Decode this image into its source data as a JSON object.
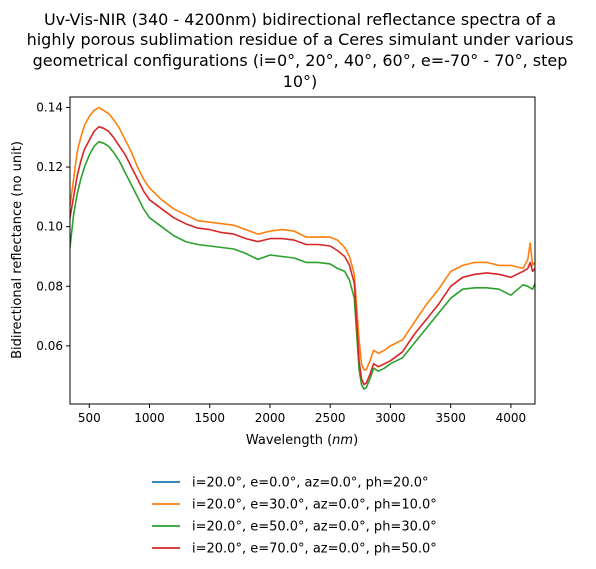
{
  "chart_data": {
    "type": "line",
    "title_lines": [
      "Uv-Vis-NIR (340 - 4200nm) bidirectional reflectance spectra of a",
      "highly porous sublimation residue of a Ceres simulant under various",
      "geometrical configurations (i=0°, 20°, 40°, 60°, e=-70° - 70°, step",
      "10°)"
    ],
    "xlabel_prefix": "Wavelength (",
    "xlabel_unit": "nm",
    "xlabel_suffix": ")",
    "ylabel": "Bidirectional reflectance (no unit)",
    "xlim": [
      340,
      4200
    ],
    "ylim": [
      0.0405,
      0.1435
    ],
    "xticks": [
      500,
      1000,
      1500,
      2000,
      2500,
      3000,
      3500,
      4000
    ],
    "yticks": [
      0.06,
      0.08,
      0.1,
      0.12,
      0.14
    ],
    "ytick_labels": [
      "0.06",
      "0.08",
      "0.10",
      "0.12",
      "0.14"
    ],
    "legend_placement": "bottom-center",
    "series": [
      {
        "name": "i=20.0°, e=0.0°, az=0.0°, ph=20.0°",
        "color": "#1f77b4",
        "x": [],
        "y": []
      },
      {
        "name": "i=20.0°, e=30.0°, az=0.0°, ph=10.0°",
        "color": "#ff7f0e",
        "x": [
          340,
          370,
          400,
          430,
          460,
          500,
          540,
          580,
          620,
          660,
          700,
          750,
          800,
          850,
          900,
          950,
          1000,
          1100,
          1200,
          1300,
          1400,
          1500,
          1600,
          1700,
          1800,
          1900,
          2000,
          2100,
          2200,
          2300,
          2400,
          2500,
          2560,
          2620,
          2660,
          2700,
          2740,
          2760,
          2780,
          2800,
          2830,
          2860,
          2900,
          2950,
          3000,
          3100,
          3200,
          3300,
          3400,
          3500,
          3600,
          3700,
          3800,
          3900,
          4000,
          4100,
          4140,
          4160,
          4180,
          4200
        ],
        "y": [
          0.107,
          0.116,
          0.125,
          0.13,
          0.134,
          0.137,
          0.139,
          0.14,
          0.139,
          0.138,
          0.136,
          0.133,
          0.129,
          0.125,
          0.12,
          0.116,
          0.113,
          0.109,
          0.106,
          0.104,
          0.102,
          0.1015,
          0.101,
          0.1005,
          0.099,
          0.0975,
          0.0985,
          0.099,
          0.0985,
          0.0965,
          0.0965,
          0.0965,
          0.0955,
          0.093,
          0.09,
          0.084,
          0.062,
          0.054,
          0.052,
          0.052,
          0.055,
          0.0585,
          0.0575,
          0.0585,
          0.06,
          0.062,
          0.068,
          0.074,
          0.079,
          0.085,
          0.087,
          0.088,
          0.088,
          0.087,
          0.087,
          0.086,
          0.089,
          0.0945,
          0.087,
          0.088
        ]
      },
      {
        "name": "i=20.0°, e=50.0°, az=0.0°, ph=30.0°",
        "color": "#2ca02c",
        "x": [
          340,
          370,
          400,
          430,
          460,
          500,
          540,
          580,
          620,
          660,
          700,
          750,
          800,
          850,
          900,
          950,
          1000,
          1100,
          1200,
          1300,
          1400,
          1500,
          1600,
          1700,
          1800,
          1900,
          2000,
          2100,
          2200,
          2300,
          2400,
          2500,
          2560,
          2620,
          2660,
          2700,
          2740,
          2760,
          2780,
          2800,
          2830,
          2860,
          2900,
          2950,
          3000,
          3100,
          3200,
          3300,
          3400,
          3500,
          3600,
          3700,
          3800,
          3900,
          4000,
          4100,
          4140,
          4160,
          4180,
          4200
        ],
        "y": [
          0.093,
          0.104,
          0.111,
          0.116,
          0.12,
          0.124,
          0.127,
          0.1285,
          0.128,
          0.127,
          0.125,
          0.122,
          0.118,
          0.114,
          0.11,
          0.106,
          0.103,
          0.1,
          0.097,
          0.095,
          0.094,
          0.0935,
          0.093,
          0.0925,
          0.091,
          0.089,
          0.0905,
          0.09,
          0.0895,
          0.088,
          0.088,
          0.0875,
          0.086,
          0.085,
          0.082,
          0.076,
          0.052,
          0.047,
          0.0455,
          0.046,
          0.049,
          0.0525,
          0.0515,
          0.0525,
          0.054,
          0.056,
          0.061,
          0.066,
          0.071,
          0.076,
          0.079,
          0.0795,
          0.0795,
          0.079,
          0.077,
          0.0805,
          0.08,
          0.0795,
          0.079,
          0.081
        ]
      },
      {
        "name": "i=20.0°, e=70.0°, az=0.0°, ph=50.0°",
        "color": "#d62728",
        "x": [
          340,
          370,
          400,
          430,
          460,
          500,
          540,
          580,
          620,
          660,
          700,
          750,
          800,
          850,
          900,
          950,
          1000,
          1100,
          1200,
          1300,
          1400,
          1500,
          1600,
          1700,
          1800,
          1900,
          2000,
          2100,
          2200,
          2300,
          2400,
          2500,
          2560,
          2620,
          2660,
          2700,
          2740,
          2760,
          2780,
          2800,
          2830,
          2860,
          2900,
          2950,
          3000,
          3100,
          3200,
          3300,
          3400,
          3500,
          3600,
          3700,
          3800,
          3900,
          4000,
          4100,
          4140,
          4160,
          4180,
          4200
        ],
        "y": [
          0.103,
          0.11,
          0.117,
          0.122,
          0.126,
          0.129,
          0.132,
          0.1335,
          0.133,
          0.132,
          0.13,
          0.127,
          0.124,
          0.12,
          0.116,
          0.112,
          0.109,
          0.106,
          0.103,
          0.101,
          0.0995,
          0.099,
          0.098,
          0.0975,
          0.096,
          0.095,
          0.096,
          0.096,
          0.0955,
          0.094,
          0.094,
          0.0935,
          0.092,
          0.09,
          0.087,
          0.081,
          0.055,
          0.049,
          0.047,
          0.0475,
          0.0505,
          0.054,
          0.053,
          0.054,
          0.055,
          0.058,
          0.064,
          0.069,
          0.074,
          0.08,
          0.083,
          0.084,
          0.0845,
          0.084,
          0.083,
          0.085,
          0.086,
          0.088,
          0.085,
          0.086
        ]
      }
    ]
  }
}
